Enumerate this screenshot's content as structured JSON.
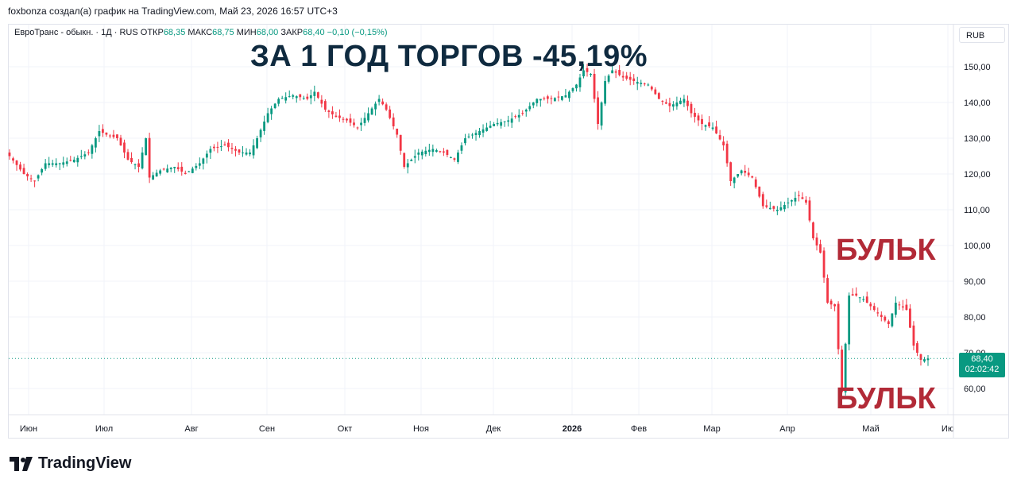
{
  "header": {
    "attribution": "foxbonza создал(а) график на TradingView.com, Май 23, 2026 16:57 UTC+3"
  },
  "legend": {
    "symbol": "ЕвроТранс - обыкн. · 1Д · RUS",
    "open_label": "ОТКР",
    "open": "68,35",
    "high_label": "МАКС",
    "high": "68,75",
    "low_label": "МИН",
    "low": "68,00",
    "close_label": "ЗАКР",
    "close": "68,40",
    "change": "−0,10 (−0,15%)"
  },
  "currency": "RUB",
  "overlay": {
    "title": "ЗА 1 ГОД ТОРГОВ -45,19%",
    "bulk_top": "БУЛЬК",
    "bulk_bottom": "БУЛЬК"
  },
  "price_tag": {
    "price": "68,40",
    "countdown": "02:02:42"
  },
  "logo_text": "TradingView",
  "colors": {
    "up": "#089981",
    "down": "#f23645",
    "grid": "#f0f3fa",
    "text": "#131722"
  },
  "chart_data": {
    "type": "candlestick",
    "y_axis_ticks": [
      "150,00",
      "140,00",
      "130,00",
      "120,00",
      "110,00",
      "100,00",
      "90,00",
      "80,00",
      "70,00",
      "60,00"
    ],
    "y_tick_values": [
      150,
      140,
      130,
      120,
      110,
      100,
      90,
      80,
      70,
      60
    ],
    "ylim": [
      52,
      155
    ],
    "x_axis_labels": [
      "Июн",
      "Июл",
      "Авг",
      "Сен",
      "Окт",
      "Ноя",
      "Дек",
      "2026",
      "Фев",
      "Мар",
      "Апр",
      "Май",
      "Ию"
    ],
    "x_label_bold": [
      false,
      false,
      false,
      false,
      false,
      false,
      false,
      true,
      false,
      false,
      false,
      false,
      false
    ],
    "last_price": 68.4,
    "approx_close_path": [
      [
        0,
        125
      ],
      [
        4,
        120
      ],
      [
        7,
        118
      ],
      [
        10,
        123
      ],
      [
        14,
        123
      ],
      [
        18,
        124
      ],
      [
        22,
        126
      ],
      [
        25,
        132
      ],
      [
        27,
        131
      ],
      [
        30,
        130
      ],
      [
        33,
        124
      ],
      [
        36,
        122
      ],
      [
        38,
        130
      ],
      [
        39,
        119
      ],
      [
        42,
        121
      ],
      [
        46,
        122
      ],
      [
        49,
        120
      ],
      [
        53,
        123
      ],
      [
        56,
        127
      ],
      [
        60,
        128
      ],
      [
        64,
        126
      ],
      [
        67,
        126
      ],
      [
        69,
        130
      ],
      [
        72,
        137
      ],
      [
        75,
        141
      ],
      [
        79,
        142
      ],
      [
        83,
        141
      ],
      [
        85,
        143
      ],
      [
        88,
        138
      ],
      [
        91,
        136
      ],
      [
        94,
        135
      ],
      [
        97,
        133
      ],
      [
        100,
        137
      ],
      [
        103,
        141
      ],
      [
        105,
        138
      ],
      [
        108,
        131
      ],
      [
        110,
        122
      ],
      [
        114,
        126
      ],
      [
        118,
        127
      ],
      [
        121,
        126
      ],
      [
        124,
        124
      ],
      [
        127,
        130
      ],
      [
        131,
        132
      ],
      [
        135,
        134
      ],
      [
        139,
        135
      ],
      [
        143,
        137
      ],
      [
        147,
        141
      ],
      [
        151,
        141
      ],
      [
        155,
        142
      ],
      [
        158,
        145
      ],
      [
        160,
        149
      ],
      [
        162,
        148
      ],
      [
        164,
        134
      ],
      [
        166,
        146
      ],
      [
        168,
        149
      ],
      [
        171,
        147
      ],
      [
        174,
        146
      ],
      [
        178,
        145
      ],
      [
        181,
        141
      ],
      [
        184,
        139
      ],
      [
        188,
        141
      ],
      [
        190,
        137
      ],
      [
        193,
        134
      ],
      [
        196,
        133
      ],
      [
        199,
        128
      ],
      [
        201,
        118
      ],
      [
        204,
        121
      ],
      [
        207,
        119
      ],
      [
        210,
        111
      ],
      [
        214,
        110
      ],
      [
        217,
        112
      ],
      [
        220,
        114
      ],
      [
        222,
        112
      ],
      [
        224,
        102
      ],
      [
        226,
        98
      ],
      [
        228,
        84
      ],
      [
        230,
        83
      ],
      [
        232,
        59
      ],
      [
        234,
        86
      ],
      [
        236,
        86
      ],
      [
        238,
        85
      ],
      [
        240,
        83
      ],
      [
        243,
        80
      ],
      [
        245,
        78
      ],
      [
        247,
        84
      ],
      [
        250,
        82
      ],
      [
        252,
        72
      ],
      [
        254,
        68
      ],
      [
        256,
        68.4
      ]
    ]
  }
}
